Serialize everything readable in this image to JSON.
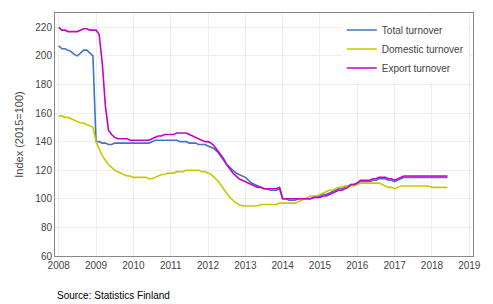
{
  "chart_data": {
    "type": "line",
    "ylabel": "Index (2015=100)",
    "annotations": [
      "Source: Statistics Finland"
    ],
    "x": [
      2008,
      2008.083333,
      2008.166667,
      2008.25,
      2008.333333,
      2008.416667,
      2008.5,
      2008.583333,
      2008.666667,
      2008.75,
      2008.833333,
      2008.916667,
      2009,
      2009.083333,
      2009.166667,
      2009.25,
      2009.333333,
      2009.416667,
      2009.5,
      2009.583333,
      2009.666667,
      2009.75,
      2009.833333,
      2009.916667,
      2010,
      2010.083333,
      2010.166667,
      2010.25,
      2010.333333,
      2010.416667,
      2010.5,
      2010.583333,
      2010.666667,
      2010.75,
      2010.833333,
      2010.916667,
      2011,
      2011.083333,
      2011.166667,
      2011.25,
      2011.333333,
      2011.416667,
      2011.5,
      2011.583333,
      2011.666667,
      2011.75,
      2011.833333,
      2011.916667,
      2012,
      2012.083333,
      2012.166667,
      2012.25,
      2012.333333,
      2012.416667,
      2012.5,
      2012.583333,
      2012.666667,
      2012.75,
      2012.833333,
      2012.916667,
      2013,
      2013.083333,
      2013.166667,
      2013.25,
      2013.333333,
      2013.416667,
      2013.5,
      2013.583333,
      2013.666667,
      2013.75,
      2013.833333,
      2013.916667,
      2014,
      2014.083333,
      2014.166667,
      2014.25,
      2014.333333,
      2014.416667,
      2014.5,
      2014.583333,
      2014.666667,
      2014.75,
      2014.833333,
      2014.916667,
      2015,
      2015.083333,
      2015.166667,
      2015.25,
      2015.333333,
      2015.416667,
      2015.5,
      2015.583333,
      2015.666667,
      2015.75,
      2015.833333,
      2015.916667,
      2016,
      2016.083333,
      2016.166667,
      2016.25,
      2016.333333,
      2016.416667,
      2016.5,
      2016.583333,
      2016.666667,
      2016.75,
      2016.833333,
      2016.916667,
      2017,
      2017.083333,
      2017.166667,
      2017.25,
      2017.333333,
      2017.416667,
      2017.5,
      2017.583333,
      2017.666667,
      2017.75,
      2017.833333,
      2017.916667,
      2018,
      2018.083333,
      2018.166667,
      2018.25,
      2018.333333,
      2018.416667
    ],
    "series": [
      {
        "name": "Total turnover",
        "color": "#4472c4",
        "values": [
          207,
          205,
          205,
          204,
          203,
          201,
          200,
          202,
          204,
          204,
          202,
          200,
          140,
          140,
          139,
          139,
          138,
          138,
          139,
          139,
          139,
          139,
          139,
          139,
          139,
          139,
          139,
          139,
          139,
          139,
          140,
          141,
          141,
          141,
          141,
          141,
          141,
          141,
          141,
          140,
          140,
          140,
          139,
          139,
          139,
          138,
          138,
          138,
          137,
          136,
          135,
          133,
          130,
          127,
          124,
          122,
          120,
          118,
          117,
          116,
          115,
          113,
          111,
          110,
          109,
          108,
          107,
          107,
          106,
          106,
          106,
          107,
          100,
          100,
          99,
          99,
          99,
          100,
          100,
          100,
          100,
          100,
          101,
          101,
          102,
          103,
          103,
          104,
          105,
          106,
          107,
          107,
          108,
          109,
          110,
          110,
          111,
          112,
          112,
          112,
          112,
          113,
          113,
          114,
          114,
          114,
          113,
          113,
          112,
          113,
          114,
          115,
          115,
          115,
          115,
          115,
          115,
          115,
          115,
          115,
          115,
          115,
          115,
          115,
          115,
          115
        ]
      },
      {
        "name": "Domestic turnover",
        "color": "#c8c800",
        "values": [
          158,
          158,
          157,
          157,
          156,
          155,
          154,
          153,
          153,
          152,
          151,
          150,
          140,
          135,
          130,
          127,
          124,
          122,
          120,
          119,
          118,
          117,
          116,
          116,
          115,
          115,
          115,
          115,
          115,
          114,
          114,
          115,
          116,
          117,
          117,
          118,
          118,
          118,
          119,
          119,
          119,
          120,
          120,
          120,
          120,
          120,
          119,
          119,
          118,
          117,
          115,
          113,
          110,
          107,
          104,
          101,
          99,
          97,
          96,
          95,
          95,
          95,
          95,
          95,
          95,
          96,
          96,
          96,
          96,
          96,
          96,
          97,
          97,
          97,
          97,
          97,
          97,
          98,
          99,
          100,
          101,
          102,
          102,
          102,
          103,
          104,
          105,
          106,
          106,
          107,
          108,
          108,
          109,
          109,
          109,
          109,
          110,
          111,
          111,
          111,
          111,
          111,
          111,
          111,
          110,
          109,
          108,
          108,
          107,
          108,
          109,
          109,
          109,
          109,
          109,
          109,
          109,
          109,
          109,
          109,
          108,
          108,
          108,
          108,
          108,
          108
        ]
      },
      {
        "name": "Export turnover",
        "color": "#c800c8",
        "values": [
          220,
          218,
          218,
          217,
          217,
          217,
          217,
          218,
          219,
          219,
          218,
          218,
          218,
          215,
          195,
          165,
          148,
          145,
          143,
          142,
          142,
          142,
          142,
          141,
          141,
          141,
          141,
          141,
          141,
          141,
          142,
          143,
          144,
          144,
          145,
          145,
          145,
          145,
          146,
          146,
          146,
          146,
          145,
          144,
          143,
          142,
          141,
          140,
          140,
          139,
          137,
          134,
          131,
          128,
          124,
          121,
          118,
          116,
          114,
          113,
          112,
          111,
          110,
          109,
          108,
          108,
          107,
          107,
          107,
          107,
          107,
          108,
          100,
          100,
          100,
          100,
          100,
          100,
          100,
          100,
          100,
          100,
          101,
          101,
          101,
          102,
          102,
          103,
          104,
          105,
          106,
          106,
          107,
          108,
          110,
          110,
          111,
          113,
          113,
          113,
          113,
          114,
          114,
          115,
          115,
          115,
          114,
          114,
          113,
          114,
          115,
          116,
          116,
          116,
          116,
          116,
          116,
          116,
          116,
          116,
          116,
          116,
          116,
          116,
          116,
          116
        ]
      }
    ],
    "xlim": [
      2007.9,
      2019.1
    ],
    "xticks": [
      2008,
      2009,
      2010,
      2011,
      2012,
      2013,
      2014,
      2015,
      2016,
      2017,
      2018,
      2019
    ],
    "ylim": [
      60,
      230
    ],
    "yticks": [
      60,
      80,
      100,
      120,
      140,
      160,
      180,
      200,
      220
    ],
    "grid": true,
    "legend": "upper right"
  }
}
